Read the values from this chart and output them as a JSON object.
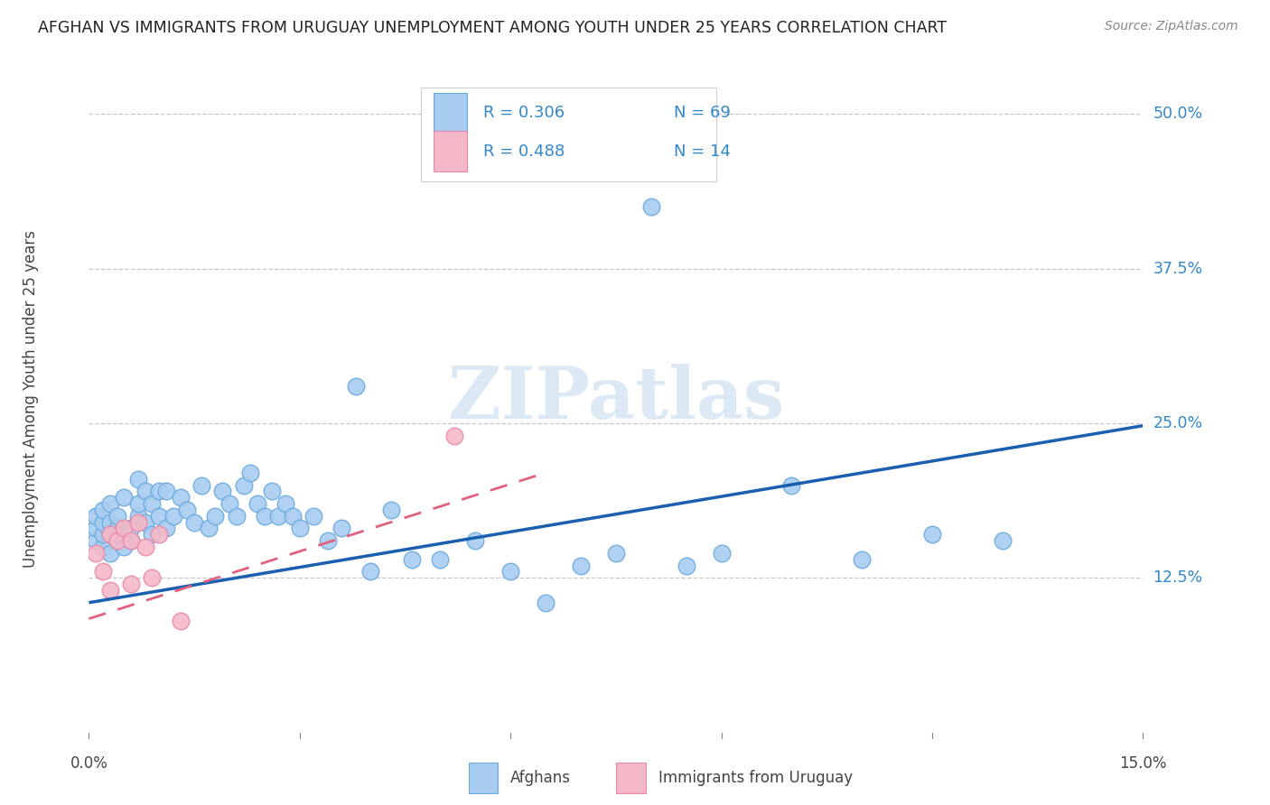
{
  "title": "AFGHAN VS IMMIGRANTS FROM URUGUAY UNEMPLOYMENT AMONG YOUTH UNDER 25 YEARS CORRELATION CHART",
  "source": "Source: ZipAtlas.com",
  "ylabel": "Unemployment Among Youth under 25 years",
  "ytick_labels": [
    "12.5%",
    "25.0%",
    "37.5%",
    "50.0%"
  ],
  "ytick_values": [
    0.125,
    0.25,
    0.375,
    0.5
  ],
  "xlim": [
    0.0,
    0.15
  ],
  "ylim": [
    0.0,
    0.54
  ],
  "background_color": "#ffffff",
  "grid_color": "#c8c8c8",
  "afghan_fill": "#a8ccf0",
  "afghan_edge": "#6aaade",
  "uruguay_fill": "#f5b8c8",
  "uruguay_edge": "#e888a8",
  "trend_blue": "#1a5fb0",
  "trend_pink": "#e06080",
  "watermark_color": "#dde8f5",
  "afghan_x": [
    0.001,
    0.001,
    0.001,
    0.002,
    0.002,
    0.002,
    0.002,
    0.003,
    0.003,
    0.003,
    0.003,
    0.004,
    0.004,
    0.004,
    0.005,
    0.005,
    0.005,
    0.006,
    0.006,
    0.007,
    0.007,
    0.007,
    0.008,
    0.008,
    0.009,
    0.009,
    0.01,
    0.01,
    0.011,
    0.011,
    0.012,
    0.013,
    0.014,
    0.015,
    0.016,
    0.017,
    0.018,
    0.019,
    0.02,
    0.021,
    0.022,
    0.023,
    0.024,
    0.025,
    0.026,
    0.027,
    0.028,
    0.029,
    0.03,
    0.032,
    0.034,
    0.036,
    0.038,
    0.04,
    0.043,
    0.046,
    0.05,
    0.055,
    0.06,
    0.065,
    0.07,
    0.075,
    0.08,
    0.085,
    0.09,
    0.1,
    0.11,
    0.12,
    0.13
  ],
  "afghan_y": [
    0.155,
    0.165,
    0.175,
    0.15,
    0.16,
    0.17,
    0.18,
    0.145,
    0.16,
    0.17,
    0.185,
    0.155,
    0.165,
    0.175,
    0.15,
    0.16,
    0.19,
    0.155,
    0.165,
    0.175,
    0.185,
    0.205,
    0.17,
    0.195,
    0.16,
    0.185,
    0.175,
    0.195,
    0.165,
    0.195,
    0.175,
    0.19,
    0.18,
    0.17,
    0.2,
    0.165,
    0.175,
    0.195,
    0.185,
    0.175,
    0.2,
    0.21,
    0.185,
    0.175,
    0.195,
    0.175,
    0.185,
    0.175,
    0.165,
    0.175,
    0.155,
    0.165,
    0.28,
    0.13,
    0.18,
    0.14,
    0.14,
    0.155,
    0.13,
    0.105,
    0.135,
    0.145,
    0.425,
    0.135,
    0.145,
    0.2,
    0.14,
    0.16,
    0.155
  ],
  "uruguay_x": [
    0.001,
    0.002,
    0.003,
    0.003,
    0.004,
    0.005,
    0.006,
    0.006,
    0.007,
    0.008,
    0.009,
    0.01,
    0.013,
    0.052
  ],
  "uruguay_y": [
    0.145,
    0.13,
    0.16,
    0.115,
    0.155,
    0.165,
    0.155,
    0.12,
    0.17,
    0.15,
    0.125,
    0.16,
    0.09,
    0.24
  ],
  "afghan_trend_x": [
    0.0,
    0.15
  ],
  "afghan_trend_y": [
    0.105,
    0.248
  ],
  "uruguay_trend_x": [
    0.0,
    0.065
  ],
  "uruguay_trend_y": [
    0.092,
    0.21
  ]
}
